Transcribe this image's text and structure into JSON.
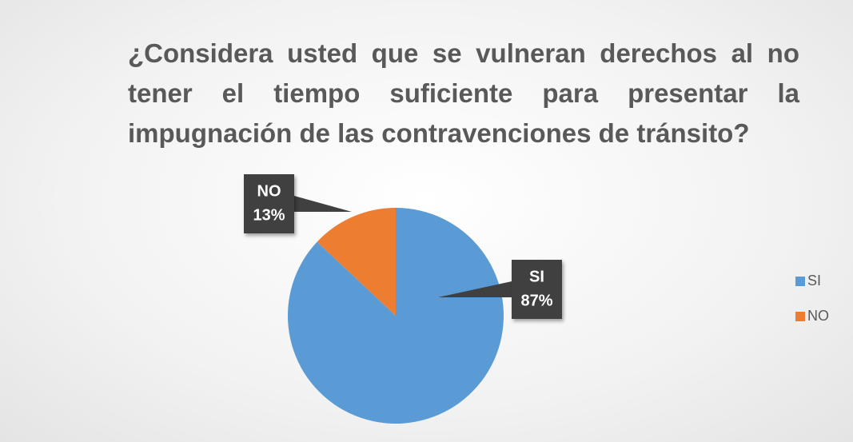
{
  "chart_data": {
    "type": "pie",
    "title": "¿Considera usted que se vulneran derechos al no tener el tiempo suficiente para presentar la impugnación de las contravenciones de tránsito?",
    "categories": [
      "SI",
      "NO"
    ],
    "values": [
      87,
      13
    ],
    "value_labels": [
      "87%",
      "13%"
    ],
    "colors": [
      "#5b9bd5",
      "#ed7d31"
    ],
    "legend": "right"
  }
}
